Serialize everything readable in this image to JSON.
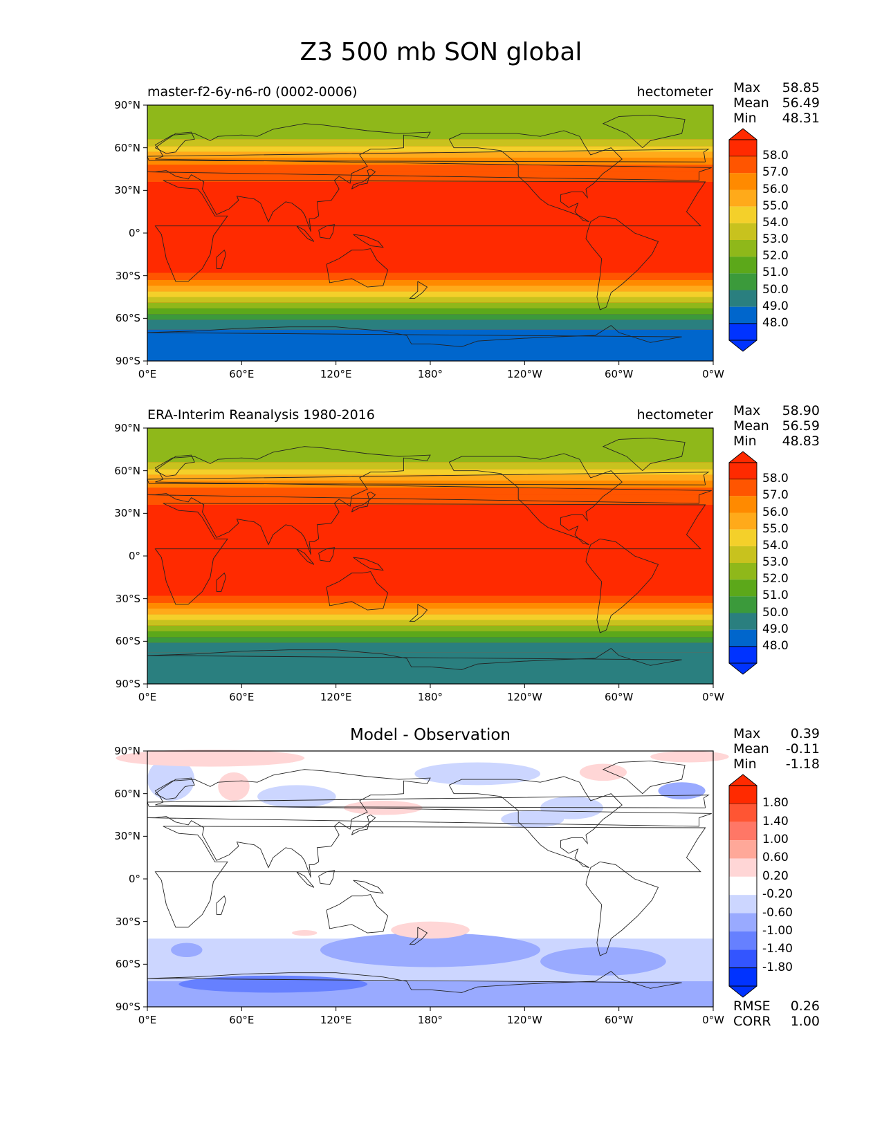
{
  "figure": {
    "title": "Z3 500 mb SON global"
  },
  "colors": {
    "abs_levels": [
      "#0033ff",
      "#0066cc",
      "#2a7f7f",
      "#3b9a3b",
      "#5ca81a",
      "#8fb81a",
      "#c8c21e",
      "#f4d02a",
      "#ffaa1a",
      "#ff8a00",
      "#ff5500",
      "#ff2a00"
    ],
    "diff_levels": [
      "#0033ff",
      "#3355ff",
      "#6680ff",
      "#99aaff",
      "#ccd6ff",
      "#ffffff",
      "#ffd6d6",
      "#ffa899",
      "#ff7766",
      "#ff5533",
      "#ff2a00"
    ]
  },
  "panels": [
    {
      "left_title": "master-f2-6y-n6-r0 (0002-0006)",
      "center_title": "",
      "units": "hectometer",
      "stats": [
        {
          "label": "Max",
          "value": "58.85"
        },
        {
          "label": "Mean",
          "value": "56.49"
        },
        {
          "label": "Min",
          "value": "48.31"
        }
      ],
      "colorbar_labels": [
        "58.0",
        "57.0",
        "56.0",
        "55.0",
        "54.0",
        "53.0",
        "52.0",
        "51.0",
        "50.0",
        "49.0",
        "48.0"
      ],
      "type": "absolute",
      "polar_south": "#0066cc"
    },
    {
      "left_title": "ERA-Interim Reanalysis 1980-2016",
      "center_title": "",
      "units": "hectometer",
      "stats": [
        {
          "label": "Max",
          "value": "58.90"
        },
        {
          "label": "Mean",
          "value": "56.59"
        },
        {
          "label": "Min",
          "value": "48.83"
        }
      ],
      "colorbar_labels": [
        "58.0",
        "57.0",
        "56.0",
        "55.0",
        "54.0",
        "53.0",
        "52.0",
        "51.0",
        "50.0",
        "49.0",
        "48.0"
      ],
      "type": "absolute",
      "polar_south": "#2a7f7f"
    },
    {
      "left_title": "",
      "center_title": "Model - Observation",
      "units": "",
      "stats": [
        {
          "label": "Max",
          "value": "0.39"
        },
        {
          "label": "Mean",
          "value": "-0.11"
        },
        {
          "label": "Min",
          "value": "-1.18"
        }
      ],
      "colorbar_labels": [
        "1.80",
        "1.40",
        "1.00",
        "0.60",
        "0.20",
        "-0.20",
        "-0.60",
        "-1.00",
        "-1.40",
        "-1.80"
      ],
      "type": "difference",
      "extra_stats": [
        {
          "label": "RMSE",
          "value": "0.26"
        },
        {
          "label": "CORR",
          "value": "1.00"
        }
      ]
    }
  ],
  "axes": {
    "y_ticks": [
      "90°N",
      "60°N",
      "30°N",
      "0°",
      "30°S",
      "60°S",
      "90°S"
    ],
    "x_ticks": [
      "0°E",
      "60°E",
      "120°E",
      "180°",
      "120°W",
      "60°W",
      "0°W"
    ]
  }
}
